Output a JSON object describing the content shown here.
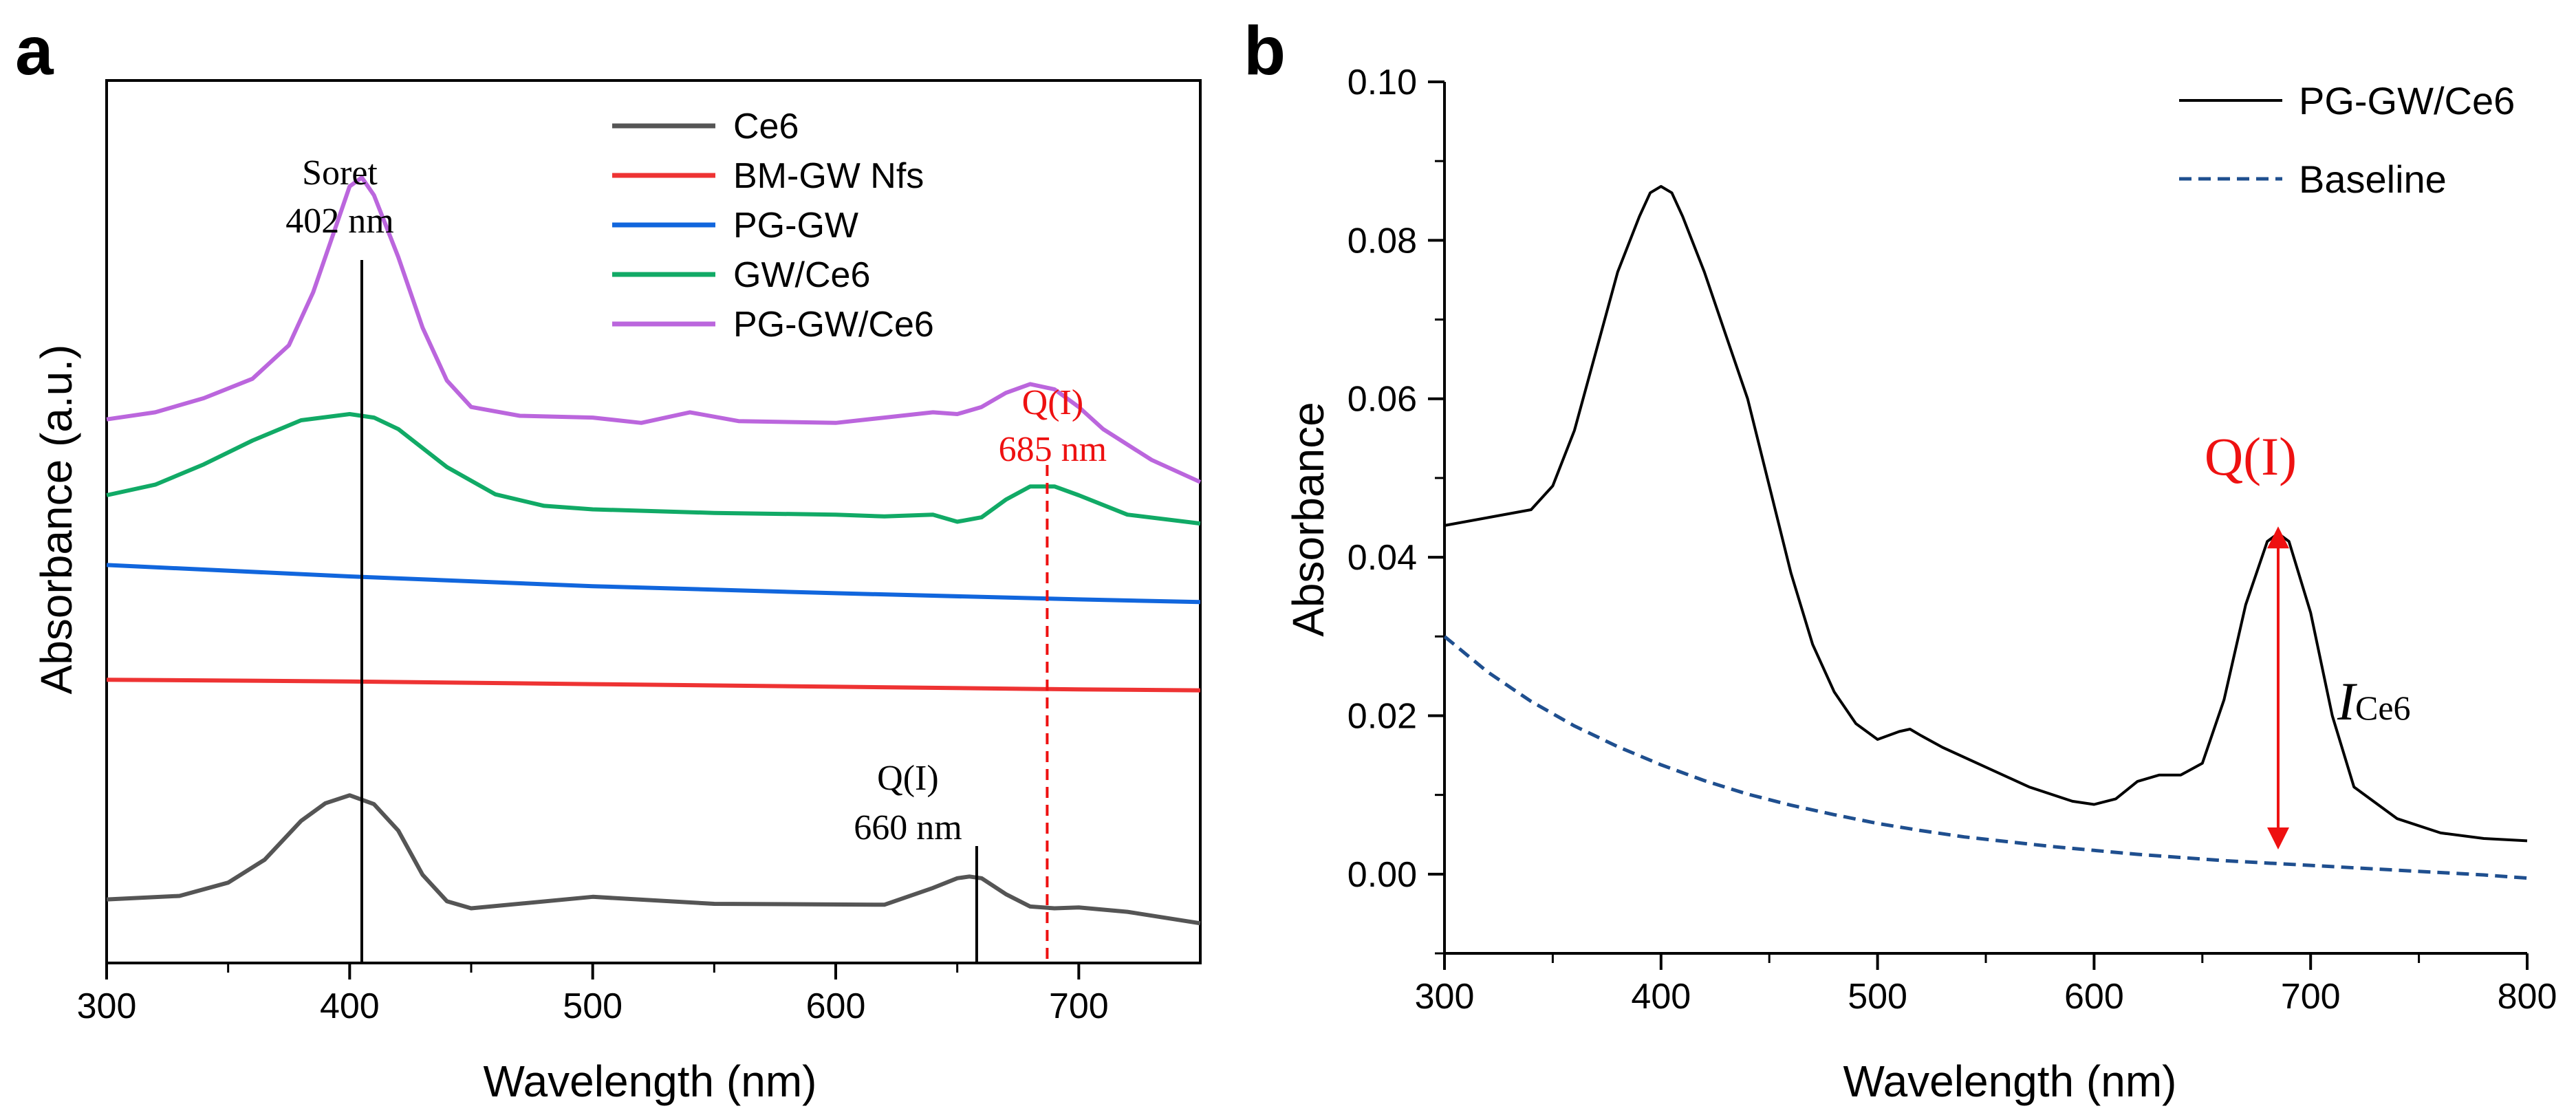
{
  "chart_data": [
    {
      "panel_label": "a",
      "type": "line",
      "xlabel": "Wavelength (nm)",
      "ylabel": "Absorbance (a.u.)",
      "xlim": [
        300,
        750
      ],
      "xticks": [
        300,
        400,
        500,
        600,
        700
      ],
      "y_units": "arbitrary (stacked offset traces)",
      "ylim": [
        0,
        1
      ],
      "series": [
        {
          "name": "Ce6",
          "color": "#555555",
          "x": [
            300,
            330,
            350,
            365,
            380,
            390,
            400,
            410,
            420,
            430,
            440,
            450,
            500,
            550,
            620,
            640,
            650,
            655,
            660,
            670,
            680,
            690,
            700,
            720,
            750
          ],
          "y": [
            0.072,
            0.076,
            0.091,
            0.117,
            0.161,
            0.181,
            0.19,
            0.18,
            0.15,
            0.1,
            0.07,
            0.062,
            0.075,
            0.067,
            0.066,
            0.085,
            0.096,
            0.098,
            0.096,
            0.078,
            0.064,
            0.062,
            0.063,
            0.058,
            0.045
          ]
        },
        {
          "name": "BM-GW Nfs",
          "color": "#ee3333",
          "x": [
            300,
            400,
            500,
            600,
            700,
            750
          ],
          "y": [
            0.321,
            0.319,
            0.316,
            0.313,
            0.31,
            0.309
          ]
        },
        {
          "name": "PG-GW",
          "color": "#1166dd",
          "x": [
            300,
            400,
            500,
            600,
            700,
            750
          ],
          "y": [
            0.451,
            0.438,
            0.427,
            0.419,
            0.412,
            0.409
          ]
        },
        {
          "name": "GW/Ce6",
          "color": "#11aa66",
          "x": [
            300,
            320,
            340,
            360,
            380,
            400,
            410,
            420,
            440,
            460,
            480,
            500,
            550,
            600,
            620,
            640,
            650,
            660,
            670,
            680,
            690,
            700,
            720,
            750
          ],
          "y": [
            0.53,
            0.542,
            0.565,
            0.592,
            0.615,
            0.622,
            0.618,
            0.605,
            0.562,
            0.531,
            0.518,
            0.514,
            0.51,
            0.508,
            0.506,
            0.508,
            0.5,
            0.505,
            0.525,
            0.54,
            0.54,
            0.53,
            0.508,
            0.498
          ]
        },
        {
          "name": "PG-GW/Ce6",
          "color": "#bb66dd",
          "x": [
            300,
            320,
            340,
            360,
            375,
            385,
            395,
            400,
            405,
            410,
            420,
            430,
            440,
            450,
            470,
            500,
            520,
            540,
            560,
            600,
            620,
            640,
            650,
            660,
            670,
            680,
            690,
            700,
            710,
            730,
            750
          ],
          "y": [
            0.616,
            0.624,
            0.64,
            0.662,
            0.7,
            0.76,
            0.84,
            0.88,
            0.89,
            0.87,
            0.8,
            0.72,
            0.66,
            0.63,
            0.62,
            0.618,
            0.612,
            0.624,
            0.614,
            0.612,
            0.618,
            0.624,
            0.622,
            0.63,
            0.646,
            0.656,
            0.65,
            0.63,
            0.605,
            0.57,
            0.545
          ]
        }
      ],
      "annotations": [
        {
          "label_line1": "Soret",
          "label_line2": "402 nm",
          "x": 405,
          "color": "#000000",
          "style": "solid"
        },
        {
          "label_line1": "Q(I)",
          "label_line2": "660 nm",
          "x": 658,
          "color": "#000000",
          "style": "solid"
        },
        {
          "label_line1": "Q(I)",
          "label_line2": "685 nm",
          "x": 687,
          "color": "#ee1111",
          "style": "dashed"
        }
      ],
      "legend": "top-center"
    },
    {
      "panel_label": "b",
      "type": "line",
      "xlabel": "Wavelength (nm)",
      "ylabel": "Absorbance",
      "xlim": [
        300,
        800
      ],
      "ylim": [
        -0.01,
        0.1
      ],
      "xticks": [
        300,
        400,
        500,
        600,
        700,
        800
      ],
      "yticks": [
        0.0,
        0.02,
        0.04,
        0.06,
        0.08,
        0.1
      ],
      "ytick_labels": [
        "0.00",
        "0.02",
        "0.04",
        "0.06",
        "0.08",
        "0.10"
      ],
      "series": [
        {
          "name": "PG-GW/Ce6",
          "color": "#000000",
          "style": "solid",
          "x": [
            300,
            320,
            340,
            350,
            360,
            370,
            380,
            390,
            395,
            400,
            405,
            410,
            420,
            430,
            440,
            450,
            460,
            470,
            480,
            490,
            500,
            510,
            515,
            520,
            530,
            550,
            570,
            590,
            600,
            610,
            620,
            630,
            640,
            650,
            660,
            670,
            680,
            685,
            690,
            700,
            710,
            720,
            740,
            760,
            780,
            800
          ],
          "y": [
            0.044,
            0.045,
            0.046,
            0.049,
            0.056,
            0.066,
            0.076,
            0.083,
            0.086,
            0.0868,
            0.086,
            0.083,
            0.076,
            0.068,
            0.06,
            0.049,
            0.038,
            0.029,
            0.023,
            0.019,
            0.017,
            0.018,
            0.0183,
            0.0175,
            0.016,
            0.0135,
            0.011,
            0.0092,
            0.0088,
            0.0095,
            0.0117,
            0.0125,
            0.0125,
            0.014,
            0.022,
            0.034,
            0.042,
            0.043,
            0.042,
            0.033,
            0.02,
            0.011,
            0.007,
            0.0052,
            0.0045,
            0.0042
          ]
        },
        {
          "name": "Baseline",
          "color": "#1f4f8f",
          "style": "dashed",
          "x": [
            300,
            320,
            340,
            360,
            380,
            400,
            420,
            440,
            460,
            480,
            500,
            520,
            540,
            560,
            580,
            600,
            620,
            640,
            660,
            680,
            700,
            720,
            740,
            760,
            780,
            800
          ],
          "y": [
            0.03,
            0.0255,
            0.0218,
            0.0187,
            0.0161,
            0.0138,
            0.0118,
            0.0101,
            0.0087,
            0.0075,
            0.0064,
            0.0055,
            0.0047,
            0.0041,
            0.0035,
            0.003,
            0.0025,
            0.0021,
            0.0017,
            0.0014,
            0.0011,
            0.0008,
            0.0005,
            0.0002,
            -0.0001,
            -0.0005
          ]
        }
      ],
      "annotations": [
        {
          "label": "Q(I)",
          "color": "#ee1111",
          "x": 685
        },
        {
          "label_main": "I",
          "label_sub": "Ce6",
          "arrow_x": 685,
          "arrow_from": 0.0045,
          "arrow_to": 0.0425,
          "color": "#ee1111"
        }
      ],
      "legend": "top-right"
    }
  ]
}
